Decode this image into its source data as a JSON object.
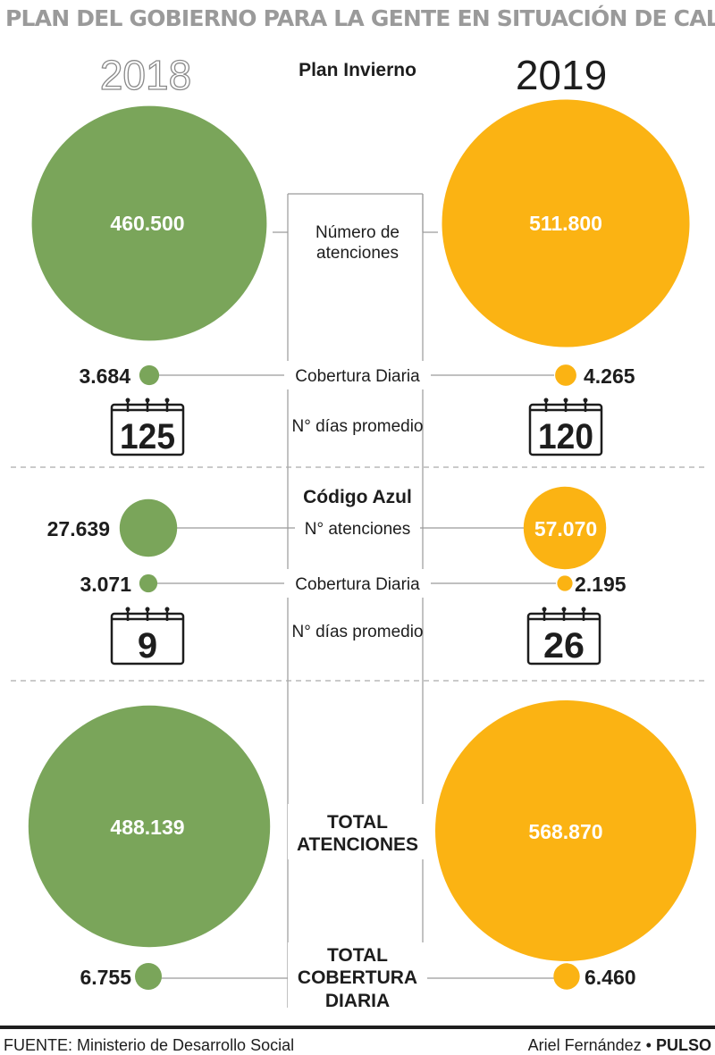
{
  "title": "PLAN DEL GOBIERNO PARA LA GENTE EN SITUACIÓN DE CALLE",
  "years": [
    "2018",
    "2019"
  ],
  "colors": {
    "y2018": "#7aa55a",
    "y2019": "#fbb313",
    "text": "#1d1d1d",
    "muted": "#9a9a9a"
  },
  "sections": [
    {
      "heading": "Plan Invierno"
    },
    {
      "heading": "Código Azul"
    }
  ],
  "labels": {
    "numero_atenciones_line1": "Número de",
    "numero_atenciones_line2": "atenciones",
    "cobertura_diaria": "Cobertura Diaria",
    "dias_promedio": "N° días promedio",
    "n_atenciones": "N° atenciones",
    "total_atenciones_line1": "TOTAL",
    "total_atenciones_line2": "ATENCIONES",
    "total_cobertura_line1": "TOTAL",
    "total_cobertura_line2": "COBERTURA",
    "total_cobertura_line3": "DIARIA"
  },
  "chart_data": {
    "type": "bubble",
    "series": [
      "2018",
      "2019"
    ],
    "rows": [
      {
        "section": "Plan Invierno",
        "metric": "Número de atenciones",
        "v2018": 460500,
        "v2019": 511800,
        "l2018": "460.500",
        "l2019": "511.800"
      },
      {
        "section": "Plan Invierno",
        "metric": "Cobertura Diaria",
        "v2018": 3684,
        "v2019": 4265,
        "l2018": "3.684",
        "l2019": "4.265"
      },
      {
        "section": "Plan Invierno",
        "metric": "N° días promedio",
        "v2018": 125,
        "v2019": 120,
        "l2018": "125",
        "l2019": "120"
      },
      {
        "section": "Código Azul",
        "metric": "N° atenciones",
        "v2018": 27639,
        "v2019": 57070,
        "l2018": "27.639",
        "l2019": "57.070"
      },
      {
        "section": "Código Azul",
        "metric": "Cobertura Diaria",
        "v2018": 3071,
        "v2019": 2195,
        "l2018": "3.071",
        "l2019": "2.195"
      },
      {
        "section": "Código Azul",
        "metric": "N° días promedio",
        "v2018": 9,
        "v2019": 26,
        "l2018": "9",
        "l2019": "26"
      },
      {
        "section": "Total",
        "metric": "TOTAL ATENCIONES",
        "v2018": 488139,
        "v2019": 568870,
        "l2018": "488.139",
        "l2019": "568.870"
      },
      {
        "section": "Total",
        "metric": "TOTAL COBERTURA DIARIA",
        "v2018": 6755,
        "v2019": 6460,
        "l2018": "6.755",
        "l2019": "6.460"
      }
    ]
  },
  "footer": {
    "source": "FUENTE: Ministerio de Desarrollo Social",
    "author": "Ariel Fernández •",
    "outlet": "PULSO"
  }
}
